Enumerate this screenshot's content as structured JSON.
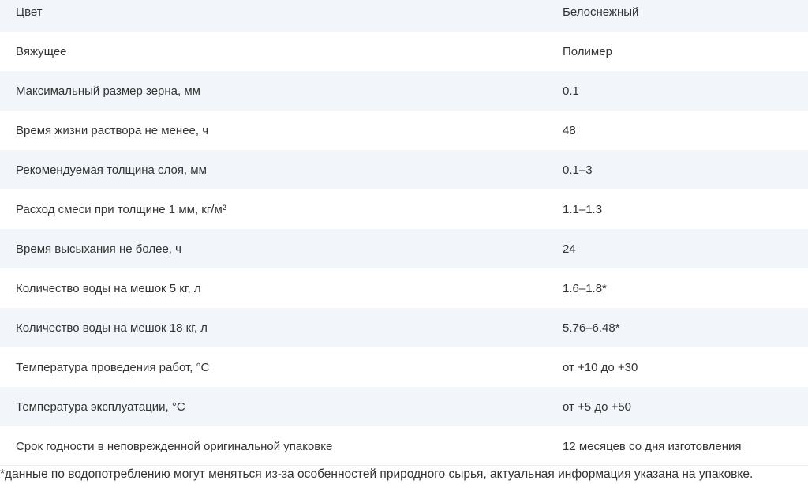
{
  "rows": [
    {
      "name": "Цвет",
      "value": "Белоснежный"
    },
    {
      "name": "Вяжущее",
      "value": "Полимер"
    },
    {
      "name": "Максимальный размер зерна, мм",
      "value": "0.1"
    },
    {
      "name": "Время жизни раствора не менее, ч",
      "value": "48"
    },
    {
      "name": "Рекомендуемая толщина слоя, мм",
      "value": "0.1–3"
    },
    {
      "name": "Расход смеси при толщине 1 мм, кг/м²",
      "value": "1.1–1.3"
    },
    {
      "name": "Время высыхания не более, ч",
      "value": "24"
    },
    {
      "name": "Количество воды на мешок 5 кг, л",
      "value": "1.6–1.8*"
    },
    {
      "name": "Количество воды на мешок 18 кг, л",
      "value": "5.76–6.48*"
    },
    {
      "name": "Температура проведения работ, °С",
      "value": "от +10 до +30"
    },
    {
      "name": "Температура эксплуатации, °С",
      "value": "от +5 до +50"
    },
    {
      "name": "Срок годности в неповрежденной оригинальной упаковке",
      "value": "12 месяцев со дня изготовления"
    }
  ],
  "footnote": "*данные по водопотреблению могут меняться из-за особенностей природного сырья, актуальная информация указана на упаковке."
}
